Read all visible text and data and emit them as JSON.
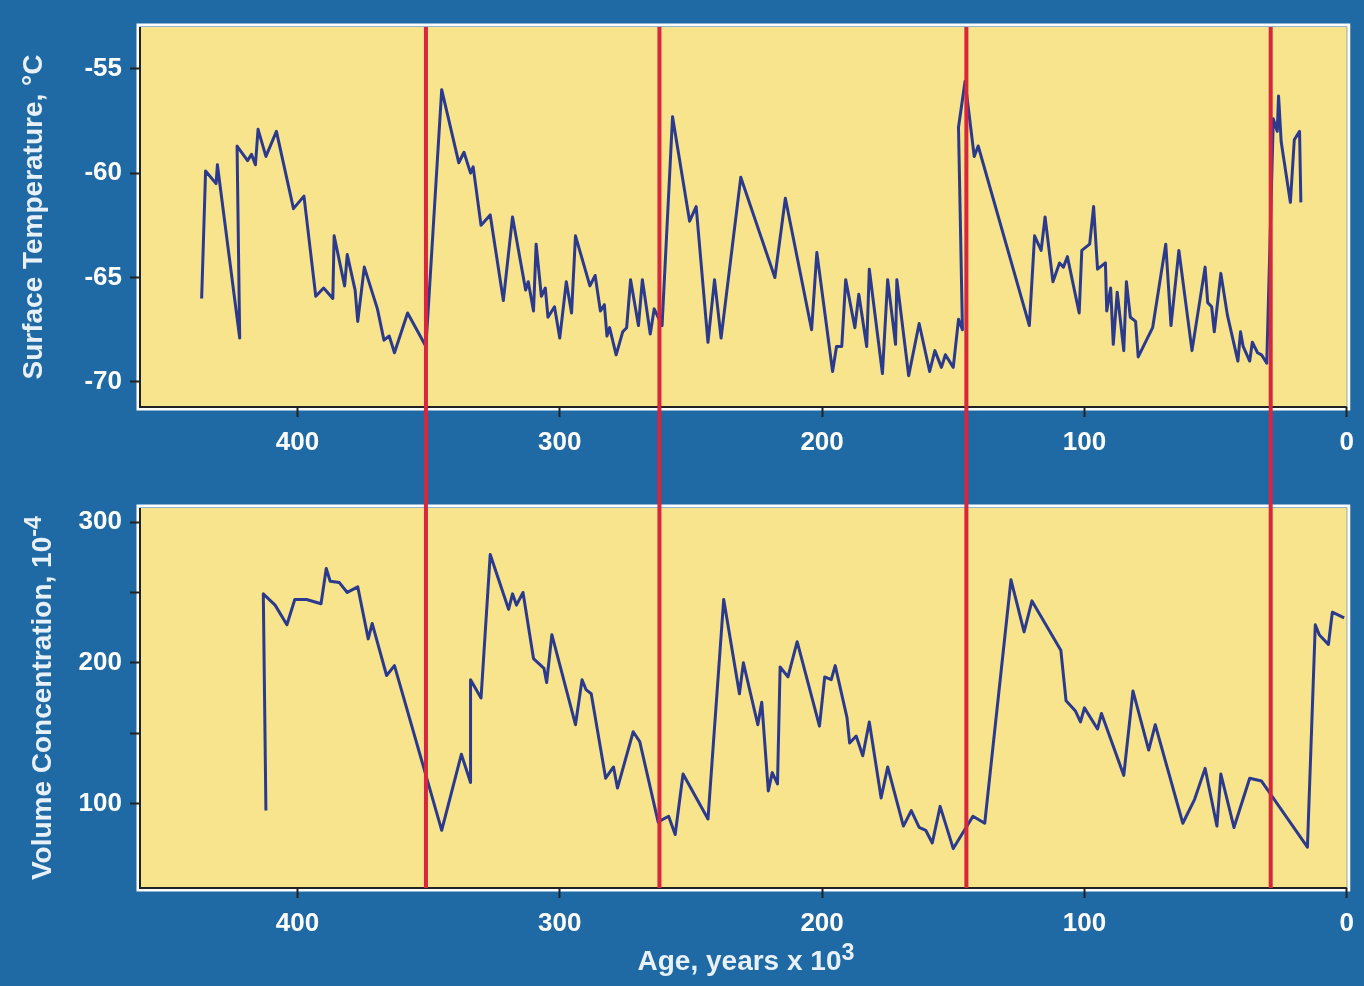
{
  "chart_data": [
    {
      "type": "line",
      "ylabel": "Surface Temperature, °C",
      "xlim": [
        460,
        0
      ],
      "xticks": [
        400,
        300,
        200,
        100,
        0
      ],
      "ylim": [
        -71.2,
        -53
      ],
      "yticks": [
        -70,
        -65,
        -60,
        -55
      ],
      "x": [
        436.5,
        435,
        431,
        430.5,
        422,
        423,
        419,
        417.5,
        416,
        415,
        412,
        408,
        401.5,
        397.5,
        393,
        390,
        386.5,
        386,
        382,
        381,
        378,
        377,
        374.5,
        369.5,
        367,
        365,
        363,
        358,
        351,
        345,
        338.5,
        336.5,
        334,
        333,
        330,
        326.5,
        321.5,
        318,
        313,
        312,
        310,
        309,
        307,
        305.5,
        304.5,
        302,
        300,
        297.5,
        295.5,
        294,
        288.5,
        286.5,
        284.5,
        283,
        282,
        281,
        278.5,
        276,
        274.5,
        273,
        270,
        268.5,
        265.5,
        264,
        261,
        257,
        250.5,
        248,
        243.5,
        241,
        238.5,
        231,
        218,
        214,
        204,
        202,
        196,
        194.5,
        192.5,
        191,
        187.5,
        186,
        183,
        182,
        177,
        175,
        172,
        171.5,
        167,
        163,
        159,
        157,
        154.5,
        153,
        150,
        148,
        146.5,
        148,
        145.5,
        142,
        140.5,
        121,
        119,
        116.5,
        115,
        112,
        109.5,
        108,
        106.5,
        102,
        101,
        98,
        96.5,
        95,
        92,
        91.5,
        90,
        89,
        87.5,
        85,
        84,
        82.5,
        80.5,
        79.5,
        74,
        69,
        67,
        64,
        59,
        54,
        53,
        51.5,
        50.5,
        48,
        45.5,
        41.5,
        40.5,
        39.5,
        37,
        36,
        34,
        32.5,
        30.5,
        28,
        26.5,
        26,
        25,
        21.5,
        20,
        18,
        17.5
      ],
      "series": [
        {
          "color": "#2b3a8c",
          "values": [
            -66.0,
            -59.9,
            -60.5,
            -59.6,
            -67.9,
            -58.7,
            -59.4,
            -59.1,
            -59.6,
            -57.9,
            -59.2,
            -58.0,
            -61.7,
            -61.1,
            -65.9,
            -65.5,
            -66.0,
            -63.0,
            -65.4,
            -63.9,
            -65.6,
            -67.1,
            -64.5,
            -66.5,
            -68.0,
            -67.8,
            -68.6,
            -66.7,
            -68.3,
            -56.0,
            -59.5,
            -59.0,
            -60.0,
            -59.7,
            -62.5,
            -62.0,
            -66.1,
            -62.1,
            -65.6,
            -65.2,
            -66.6,
            -63.4,
            -65.9,
            -65.5,
            -66.9,
            -66.4,
            -67.9,
            -65.2,
            -66.7,
            -63.0,
            -65.4,
            -64.9,
            -66.6,
            -66.3,
            -67.8,
            -67.4,
            -68.7,
            -67.6,
            -67.4,
            -65.1,
            -67.3,
            -65.1,
            -67.7,
            -66.5,
            -67.3,
            -57.3,
            -62.3,
            -61.6,
            -68.1,
            -65.1,
            -67.9,
            -60.2,
            -65.0,
            -61.2,
            -67.5,
            -63.8,
            -69.5,
            -68.3,
            -68.3,
            -65.1,
            -67.4,
            -65.8,
            -68.3,
            -64.6,
            -69.6,
            -65.1,
            -68.2,
            -65.1,
            -69.7,
            -67.2,
            -69.5,
            -68.5,
            -69.3,
            -68.7,
            -69.3,
            -67.0,
            -67.5,
            -57.8,
            -55.6,
            -59.2,
            -58.7,
            -67.3,
            -63.0,
            -63.7,
            -62.1,
            -65.2,
            -64.3,
            -64.5,
            -64.0,
            -66.7,
            -63.7,
            -63.4,
            -61.6,
            -64.6,
            -64.3,
            -66.6,
            -65.5,
            -68.2,
            -65.7,
            -68.5,
            -65.2,
            -66.9,
            -67.1,
            -68.8,
            -67.4,
            -63.4,
            -67.3,
            -63.7,
            -68.5,
            -64.5,
            -66.2,
            -66.4,
            -67.6,
            -64.8,
            -66.8,
            -69.0,
            -67.6,
            -68.3,
            -69.0,
            -68.1,
            -68.6,
            -68.7,
            -69.1,
            -57.4,
            -58.0,
            -56.3,
            -58.5,
            -61.4,
            -58.4,
            -58.0,
            -61.4
          ]
        }
      ],
      "ref_lines": [
        {
          "axis": "x",
          "value": 351,
          "color": "#d7263d"
        },
        {
          "axis": "x",
          "value": 262,
          "color": "#d7263d"
        },
        {
          "axis": "x",
          "value": 145,
          "color": "#d7263d"
        },
        {
          "axis": "x",
          "value": 29,
          "color": "#d7263d"
        }
      ]
    },
    {
      "type": "line",
      "xlabel": "Age, years x 10$^{3}$",
      "ylabel": "Volume Concentration, 10$^{-4}$",
      "xlim": [
        460,
        0
      ],
      "xticks": [
        400,
        300,
        200,
        100,
        0
      ],
      "ylim": [
        40,
        310
      ],
      "yticks": [
        100,
        {
          "value": 150,
          "label": null
        },
        200,
        {
          "value": 250,
          "label": null
        },
        300
      ],
      "x": [
        412,
        413,
        408.5,
        404,
        401,
        396.5,
        391,
        389,
        387.5,
        384,
        381,
        377,
        373,
        371.5,
        366,
        363,
        345,
        337.5,
        334,
        334,
        330,
        326.5,
        319.5,
        318,
        316.5,
        314,
        310,
        306,
        305,
        303,
        294,
        291.5,
        290,
        288,
        282.5,
        279.5,
        278,
        272,
        269.5,
        262.5,
        258.5,
        256,
        253,
        243.5,
        237.5,
        231.5,
        230,
        224.5,
        223,
        220.5,
        219,
        217,
        216,
        213,
        209.5,
        201,
        199,
        196.5,
        195,
        190.5,
        189.5,
        187,
        184.5,
        182,
        177.5,
        175,
        169,
        166,
        163,
        160.5,
        158,
        155,
        150,
        142.5,
        138,
        128,
        123,
        120,
        109,
        107,
        103.5,
        101.5,
        100,
        95,
        93.5,
        85,
        81.5,
        75.5,
        73,
        62.5,
        58,
        54,
        49.5,
        48,
        43,
        37,
        32.5,
        15,
        12,
        10.5,
        7,
        5.5,
        1
      ],
      "series": [
        {
          "color": "#2b3a8c",
          "values": [
            95,
            249,
            241,
            227,
            245,
            245,
            242,
            267,
            258,
            257,
            250,
            254,
            217,
            228,
            191,
            198,
            81,
            135,
            115,
            188,
            175,
            277,
            238,
            249,
            241,
            250,
            203,
            196,
            186,
            220,
            156,
            188,
            181,
            178,
            118,
            126,
            111,
            151,
            144,
            87,
            91,
            78,
            121,
            89,
            245,
            178,
            200,
            156,
            172,
            109,
            122,
            114,
            197,
            190,
            215,
            155,
            190,
            188,
            198,
            161,
            143,
            148,
            134,
            158,
            104,
            126,
            84,
            95,
            83,
            81,
            72,
            98,
            68,
            91,
            86,
            259,
            222,
            244,
            209,
            173,
            166,
            158,
            168,
            153,
            164,
            120,
            180,
            138,
            156,
            86,
            103,
            125,
            84,
            121,
            83,
            118,
            116,
            69,
            227,
            220,
            213,
            236,
            232
          ]
        }
      ],
      "ref_lines": [
        {
          "axis": "x",
          "value": 351,
          "color": "#d7263d"
        },
        {
          "axis": "x",
          "value": 262,
          "color": "#d7263d"
        },
        {
          "axis": "x",
          "value": 145,
          "color": "#d7263d"
        },
        {
          "axis": "x",
          "value": 29,
          "color": "#d7263d"
        }
      ]
    }
  ]
}
